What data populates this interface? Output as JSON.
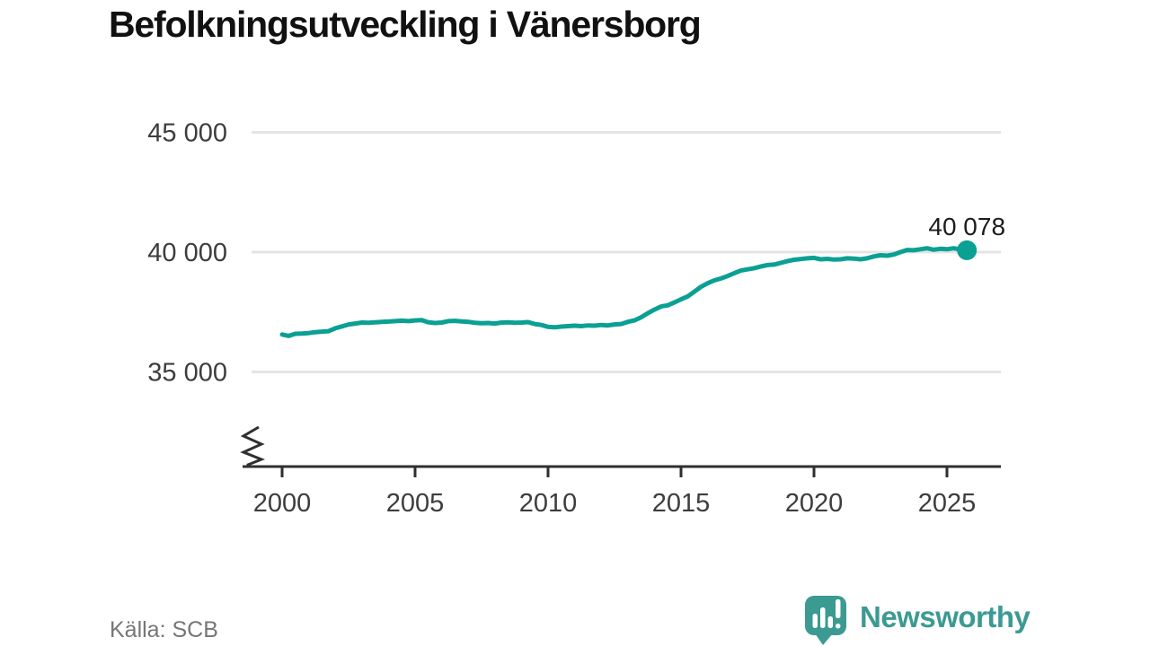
{
  "title": "Befolkningsutveckling i Vänersborg",
  "footer": {
    "source_label": "Källa: SCB",
    "brand": "Newsworthy"
  },
  "colors": {
    "line": "#0aa094",
    "grid": "#e4e4e4",
    "axis": "#2f2f2f",
    "tick_label": "#3d3d3d",
    "annotation": "#1c1c1c",
    "source_text": "#767676",
    "brand_teal": "#3b9a92"
  },
  "chart_data": {
    "type": "line",
    "title": "Befolkningsutveckling i Vänersborg",
    "xlabel": "",
    "ylabel": "",
    "grid": "horizontal",
    "axis_break_below": 35000,
    "ylim_plot": [
      35000,
      45000
    ],
    "y_ticks": [
      {
        "value": 45000,
        "label": "45 000"
      },
      {
        "value": 40000,
        "label": "40 000"
      },
      {
        "value": 35000,
        "label": "35 000"
      }
    ],
    "x_ticks": [
      2000,
      2005,
      2010,
      2015,
      2020,
      2025
    ],
    "x_start": 2000,
    "x_step_years": 0.25,
    "values": [
      36560,
      36500,
      36590,
      36600,
      36620,
      36660,
      36680,
      36700,
      36820,
      36900,
      36980,
      37020,
      37060,
      37050,
      37070,
      37090,
      37100,
      37120,
      37140,
      37120,
      37150,
      37160,
      37070,
      37040,
      37060,
      37120,
      37130,
      37110,
      37090,
      37050,
      37030,
      37040,
      37020,
      37060,
      37070,
      37050,
      37060,
      37080,
      37000,
      36960,
      36880,
      36860,
      36890,
      36910,
      36930,
      36910,
      36940,
      36930,
      36960,
      36940,
      36980,
      37000,
      37090,
      37150,
      37280,
      37450,
      37600,
      37730,
      37780,
      37900,
      38030,
      38150,
      38350,
      38550,
      38700,
      38820,
      38900,
      39000,
      39120,
      39230,
      39280,
      39330,
      39400,
      39460,
      39480,
      39550,
      39620,
      39680,
      39710,
      39740,
      39760,
      39700,
      39720,
      39690,
      39700,
      39740,
      39730,
      39700,
      39740,
      39820,
      39870,
      39850,
      39900,
      40000,
      40090,
      40080,
      40120,
      40160,
      40100,
      40140,
      40120,
      40160,
      40110,
      40078
    ],
    "end_point": {
      "value": 40078,
      "label": "40 078"
    }
  }
}
